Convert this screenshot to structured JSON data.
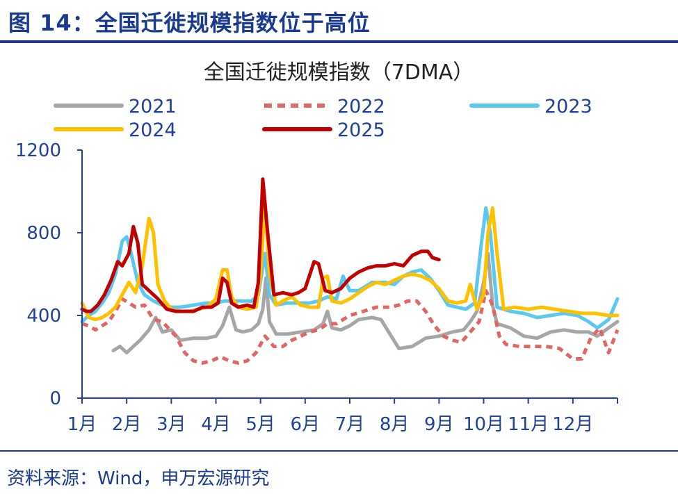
{
  "figure_title": "图 14：全国迁徙规模指数位于高位",
  "source": "资料来源：Wind，申万宏源研究",
  "colors": {
    "title_blue": "#1a3a8f",
    "axis": "#1f3f99"
  },
  "chart_data": {
    "type": "line",
    "title": "全国迁徙规模指数（7DMA）",
    "xlabel": "",
    "ylabel": "",
    "x_tick_labels": [
      "1月",
      "2月",
      "3月",
      "4月",
      "5月",
      "6月",
      "7月",
      "8月",
      "9月",
      "10月",
      "11月",
      "12月"
    ],
    "ylim": [
      0,
      1200
    ],
    "y_ticks": [
      0,
      400,
      800,
      1200
    ],
    "grid": false,
    "legend_position": "top",
    "series": [
      {
        "name": "2021",
        "color": "#a6a6a6",
        "dash": "none",
        "points": [
          [
            1.7,
            230
          ],
          [
            1.85,
            250
          ],
          [
            2.0,
            220
          ],
          [
            2.15,
            250
          ],
          [
            2.3,
            280
          ],
          [
            2.5,
            330
          ],
          [
            2.65,
            390
          ],
          [
            2.8,
            320
          ],
          [
            3.0,
            330
          ],
          [
            3.2,
            280
          ],
          [
            3.5,
            290
          ],
          [
            3.8,
            290
          ],
          [
            4.0,
            300
          ],
          [
            4.15,
            350
          ],
          [
            4.3,
            440
          ],
          [
            4.45,
            330
          ],
          [
            4.6,
            320
          ],
          [
            4.8,
            330
          ],
          [
            4.95,
            360
          ],
          [
            5.05,
            430
          ],
          [
            5.12,
            580
          ],
          [
            5.2,
            370
          ],
          [
            5.35,
            310
          ],
          [
            5.6,
            310
          ],
          [
            5.9,
            320
          ],
          [
            6.2,
            330
          ],
          [
            6.4,
            360
          ],
          [
            6.5,
            420
          ],
          [
            6.6,
            340
          ],
          [
            6.8,
            330
          ],
          [
            7.0,
            350
          ],
          [
            7.2,
            380
          ],
          [
            7.5,
            390
          ],
          [
            7.7,
            380
          ],
          [
            7.9,
            310
          ],
          [
            8.1,
            240
          ],
          [
            8.4,
            250
          ],
          [
            8.7,
            290
          ],
          [
            9.0,
            300
          ],
          [
            9.3,
            320
          ],
          [
            9.55,
            330
          ],
          [
            9.7,
            370
          ],
          [
            9.85,
            420
          ],
          [
            10.0,
            560
          ],
          [
            10.1,
            700
          ],
          [
            10.2,
            450
          ],
          [
            10.3,
            360
          ],
          [
            10.6,
            340
          ],
          [
            10.9,
            300
          ],
          [
            11.2,
            290
          ],
          [
            11.5,
            320
          ],
          [
            11.8,
            330
          ],
          [
            12.1,
            320
          ],
          [
            12.35,
            320
          ],
          [
            12.55,
            300
          ],
          [
            12.8,
            340
          ],
          [
            13.0,
            370
          ]
        ]
      },
      {
        "name": "2022",
        "color": "#e06666",
        "dash": "9,7",
        "points": [
          [
            1.0,
            360
          ],
          [
            1.15,
            350
          ],
          [
            1.3,
            330
          ],
          [
            1.45,
            350
          ],
          [
            1.6,
            370
          ],
          [
            1.75,
            420
          ],
          [
            1.9,
            480
          ],
          [
            2.05,
            460
          ],
          [
            2.2,
            440
          ],
          [
            2.4,
            450
          ],
          [
            2.6,
            380
          ],
          [
            2.8,
            370
          ],
          [
            3.1,
            300
          ],
          [
            3.3,
            220
          ],
          [
            3.5,
            180
          ],
          [
            3.7,
            170
          ],
          [
            3.9,
            180
          ],
          [
            4.1,
            200
          ],
          [
            4.3,
            180
          ],
          [
            4.5,
            170
          ],
          [
            4.7,
            180
          ],
          [
            4.9,
            220
          ],
          [
            5.1,
            300
          ],
          [
            5.3,
            250
          ],
          [
            5.5,
            250
          ],
          [
            5.7,
            280
          ],
          [
            5.9,
            300
          ],
          [
            6.1,
            320
          ],
          [
            6.3,
            330
          ],
          [
            6.5,
            360
          ],
          [
            6.7,
            360
          ],
          [
            7.0,
            400
          ],
          [
            7.3,
            420
          ],
          [
            7.6,
            440
          ],
          [
            7.9,
            440
          ],
          [
            8.1,
            450
          ],
          [
            8.3,
            470
          ],
          [
            8.5,
            470
          ],
          [
            8.7,
            420
          ],
          [
            8.9,
            350
          ],
          [
            9.1,
            300
          ],
          [
            9.3,
            280
          ],
          [
            9.5,
            270
          ],
          [
            9.7,
            320
          ],
          [
            9.9,
            370
          ],
          [
            10.05,
            520
          ],
          [
            10.2,
            450
          ],
          [
            10.35,
            300
          ],
          [
            10.5,
            260
          ],
          [
            10.8,
            250
          ],
          [
            11.1,
            250
          ],
          [
            11.4,
            250
          ],
          [
            11.7,
            240
          ],
          [
            12.0,
            190
          ],
          [
            12.2,
            190
          ],
          [
            12.4,
            290
          ],
          [
            12.6,
            340
          ],
          [
            12.8,
            220
          ],
          [
            13.0,
            330
          ]
        ]
      },
      {
        "name": "2023",
        "color": "#5bc8f0",
        "dash": "none",
        "points": [
          [
            1.0,
            370
          ],
          [
            1.15,
            400
          ],
          [
            1.3,
            420
          ],
          [
            1.45,
            460
          ],
          [
            1.6,
            510
          ],
          [
            1.75,
            600
          ],
          [
            1.9,
            760
          ],
          [
            2.0,
            780
          ],
          [
            2.1,
            700
          ],
          [
            2.25,
            560
          ],
          [
            2.4,
            500
          ],
          [
            2.6,
            470
          ],
          [
            2.8,
            450
          ],
          [
            3.0,
            440
          ],
          [
            3.2,
            440
          ],
          [
            3.5,
            450
          ],
          [
            3.8,
            460
          ],
          [
            4.0,
            460
          ],
          [
            4.2,
            470
          ],
          [
            4.4,
            470
          ],
          [
            4.6,
            470
          ],
          [
            4.8,
            470
          ],
          [
            4.95,
            500
          ],
          [
            5.1,
            700
          ],
          [
            5.2,
            500
          ],
          [
            5.35,
            450
          ],
          [
            5.6,
            460
          ],
          [
            5.9,
            460
          ],
          [
            6.1,
            460
          ],
          [
            6.3,
            470
          ],
          [
            6.5,
            490
          ],
          [
            6.7,
            480
          ],
          [
            6.85,
            590
          ],
          [
            7.0,
            520
          ],
          [
            7.2,
            520
          ],
          [
            7.5,
            560
          ],
          [
            7.8,
            560
          ],
          [
            8.0,
            550
          ],
          [
            8.2,
            590
          ],
          [
            8.4,
            610
          ],
          [
            8.6,
            620
          ],
          [
            8.8,
            580
          ],
          [
            9.0,
            520
          ],
          [
            9.2,
            450
          ],
          [
            9.4,
            440
          ],
          [
            9.6,
            430
          ],
          [
            9.8,
            460
          ],
          [
            9.95,
            750
          ],
          [
            10.05,
            920
          ],
          [
            10.15,
            800
          ],
          [
            10.3,
            440
          ],
          [
            10.6,
            420
          ],
          [
            10.9,
            410
          ],
          [
            11.2,
            390
          ],
          [
            11.5,
            400
          ],
          [
            11.8,
            410
          ],
          [
            12.1,
            400
          ],
          [
            12.35,
            370
          ],
          [
            12.55,
            340
          ],
          [
            12.8,
            380
          ],
          [
            13.0,
            480
          ]
        ]
      },
      {
        "name": "2024",
        "color": "#ffc000",
        "dash": "none",
        "points": [
          [
            1.0,
            460
          ],
          [
            1.15,
            390
          ],
          [
            1.3,
            380
          ],
          [
            1.45,
            390
          ],
          [
            1.6,
            410
          ],
          [
            1.75,
            440
          ],
          [
            1.9,
            500
          ],
          [
            2.05,
            560
          ],
          [
            2.2,
            510
          ],
          [
            2.35,
            640
          ],
          [
            2.5,
            870
          ],
          [
            2.6,
            800
          ],
          [
            2.7,
            550
          ],
          [
            2.85,
            470
          ],
          [
            3.0,
            430
          ],
          [
            3.2,
            420
          ],
          [
            3.4,
            420
          ],
          [
            3.6,
            430
          ],
          [
            3.8,
            440
          ],
          [
            4.0,
            480
          ],
          [
            4.15,
            620
          ],
          [
            4.25,
            620
          ],
          [
            4.35,
            490
          ],
          [
            4.5,
            440
          ],
          [
            4.7,
            430
          ],
          [
            4.9,
            440
          ],
          [
            5.0,
            600
          ],
          [
            5.1,
            950
          ],
          [
            5.2,
            600
          ],
          [
            5.35,
            450
          ],
          [
            5.5,
            470
          ],
          [
            5.7,
            490
          ],
          [
            5.9,
            450
          ],
          [
            6.1,
            440
          ],
          [
            6.3,
            440
          ],
          [
            6.4,
            580
          ],
          [
            6.5,
            590
          ],
          [
            6.6,
            470
          ],
          [
            6.8,
            460
          ],
          [
            7.0,
            480
          ],
          [
            7.2,
            510
          ],
          [
            7.4,
            540
          ],
          [
            7.6,
            560
          ],
          [
            7.8,
            550
          ],
          [
            8.0,
            570
          ],
          [
            8.2,
            590
          ],
          [
            8.4,
            600
          ],
          [
            8.6,
            590
          ],
          [
            8.8,
            570
          ],
          [
            9.0,
            530
          ],
          [
            9.2,
            470
          ],
          [
            9.4,
            460
          ],
          [
            9.6,
            470
          ],
          [
            9.7,
            550
          ],
          [
            9.85,
            430
          ],
          [
            10.0,
            500
          ],
          [
            10.1,
            800
          ],
          [
            10.2,
            920
          ],
          [
            10.3,
            700
          ],
          [
            10.45,
            430
          ],
          [
            10.7,
            440
          ],
          [
            11.0,
            430
          ],
          [
            11.3,
            440
          ],
          [
            11.6,
            430
          ],
          [
            11.9,
            420
          ],
          [
            12.2,
            410
          ],
          [
            12.5,
            410
          ],
          [
            12.8,
            400
          ],
          [
            13.0,
            400
          ]
        ]
      },
      {
        "name": "2025",
        "color": "#c00000",
        "dash": "none",
        "points": [
          [
            1.0,
            430
          ],
          [
            1.1,
            420
          ],
          [
            1.2,
            420
          ],
          [
            1.35,
            450
          ],
          [
            1.5,
            500
          ],
          [
            1.65,
            570
          ],
          [
            1.8,
            660
          ],
          [
            1.9,
            640
          ],
          [
            2.05,
            700
          ],
          [
            2.15,
            830
          ],
          [
            2.25,
            750
          ],
          [
            2.35,
            550
          ],
          [
            2.5,
            520
          ],
          [
            2.7,
            480
          ],
          [
            2.9,
            430
          ],
          [
            3.1,
            420
          ],
          [
            3.3,
            420
          ],
          [
            3.5,
            420
          ],
          [
            3.7,
            440
          ],
          [
            3.9,
            440
          ],
          [
            4.05,
            460
          ],
          [
            4.15,
            580
          ],
          [
            4.25,
            560
          ],
          [
            4.35,
            460
          ],
          [
            4.5,
            440
          ],
          [
            4.7,
            450
          ],
          [
            4.85,
            440
          ],
          [
            4.95,
            560
          ],
          [
            5.05,
            1060
          ],
          [
            5.15,
            820
          ],
          [
            5.3,
            500
          ],
          [
            5.5,
            510
          ],
          [
            5.7,
            500
          ],
          [
            5.85,
            510
          ],
          [
            6.0,
            530
          ],
          [
            6.2,
            660
          ],
          [
            6.3,
            650
          ],
          [
            6.45,
            520
          ],
          [
            6.6,
            510
          ],
          [
            6.8,
            530
          ],
          [
            7.0,
            580
          ],
          [
            7.2,
            610
          ],
          [
            7.4,
            630
          ],
          [
            7.6,
            640
          ],
          [
            7.8,
            640
          ],
          [
            8.0,
            650
          ],
          [
            8.2,
            640
          ],
          [
            8.4,
            690
          ],
          [
            8.6,
            710
          ],
          [
            8.75,
            710
          ],
          [
            8.85,
            680
          ],
          [
            9.0,
            670
          ]
        ]
      }
    ]
  }
}
